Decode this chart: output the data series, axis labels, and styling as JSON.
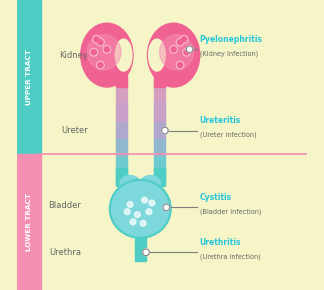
{
  "bg_color": "#f5f5c8",
  "upper_sidebar_color": "#4ecdc4",
  "lower_sidebar_color": "#f48fb1",
  "lower_bg": "#f5f5c8",
  "kidney_color": "#f06292",
  "kidney_highlight": "#f48fb1",
  "kidney_spot_color": "#f8bbd0",
  "kidney_spot_ring": "#f06292",
  "ureter_color": "#b8a0c8",
  "bladder_color": "#7dd8dc",
  "bladder_inner": "#a8e6e8",
  "bladder_wall": "#4ecdc4",
  "urethra_color": "#4ecdc4",
  "annotation_color": "#26c6da",
  "label_color": "#666666",
  "divider_color": "#f48fb1",
  "upper_label": "UPPER TRACT",
  "lower_label": "LOWER TRACT",
  "kidney_text": "Kidney",
  "ureter_text": "Ureter",
  "bladder_text": "Bladder",
  "urethra_text": "Urethra",
  "ann1_title": "Pyelonephritis",
  "ann1_sub": "(Kidney infection)",
  "ann2_title": "Ureteritis",
  "ann2_sub": "(Ureter infection)",
  "ann3_title": "Cystitis",
  "ann3_sub": "(Bladder infection)",
  "ann4_title": "Urethritis",
  "ann4_sub": "(Urethra infection)"
}
